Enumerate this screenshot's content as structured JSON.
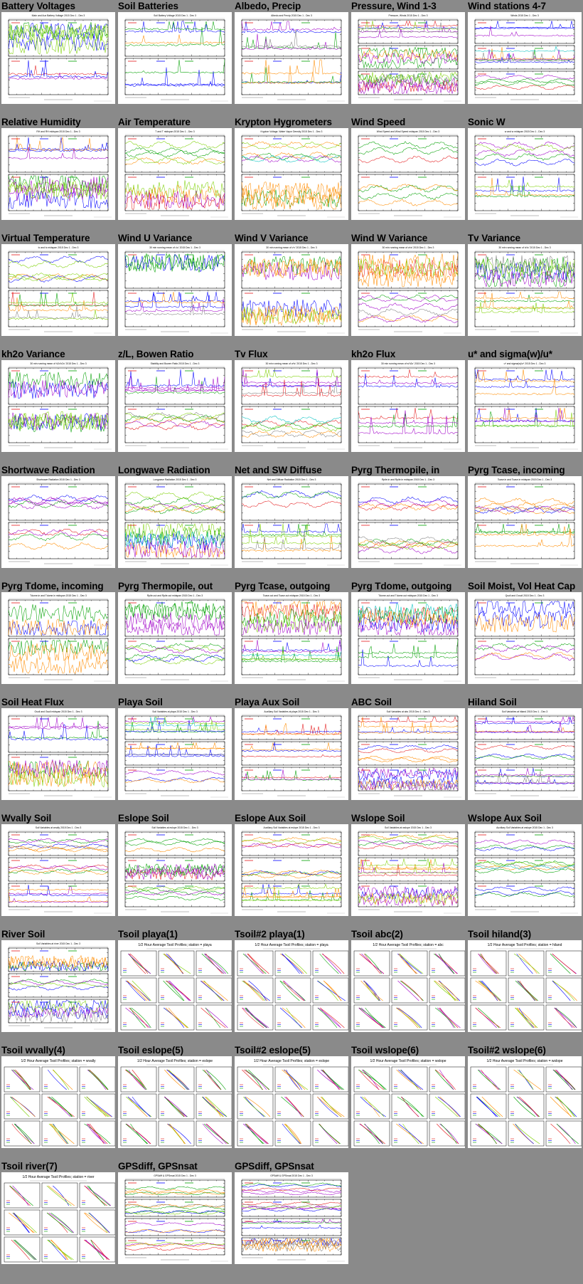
{
  "gallery": {
    "columns": 5,
    "panels": [
      {
        "title": "Battery Voltages",
        "kind": "ts2",
        "mini_title": "Main and Aux Battery Voltage 2015 Dec 1 - Dec 3"
      },
      {
        "title": "Soil Batteries",
        "kind": "ts2",
        "mini_title": "Soil Battery Voltage 2015 Dec 1 - Dec 3"
      },
      {
        "title": "Albedo, Precip",
        "kind": "ts2",
        "mini_title": "Albedo and Precip 2015 Dec 1 - Dec 3"
      },
      {
        "title": "Pressure, Wind 1-3",
        "kind": "ts3",
        "mini_title": "Pressure, Winds 2015 Dec 1 - Dec 3"
      },
      {
        "title": "Wind stations 4-7",
        "kind": "ts3",
        "mini_title": "Winds 2015 Dec 1 - Dec 3"
      },
      {
        "title": "Relative Humidity",
        "kind": "ts2",
        "mini_title": "RH and RH midspan 2015 Dec 1 - Dec 3"
      },
      {
        "title": "Air Temperature",
        "kind": "ts2",
        "mini_title": "T and T midspan 2015 Dec 1 - Dec 3"
      },
      {
        "title": "Krypton Hygrometers",
        "kind": "ts2",
        "mini_title": "Krypton Voltage, Water Vapor Density 2015 Dec 1 - Dec 3"
      },
      {
        "title": "Wind Speed",
        "kind": "ts2",
        "mini_title": "Wind Speed and Wind Speed midspan 2015 Dec 1 - Dec 3"
      },
      {
        "title": "Sonic W",
        "kind": "ts2",
        "mini_title": "w and w midspan 2015 Dec 1 - Dec 3"
      },
      {
        "title": "Virtual Temperature",
        "kind": "ts2",
        "mini_title": "tc and tc midspan 2015 Dec 1 - Dec 3"
      },
      {
        "title": "Wind U Variance",
        "kind": "ts2",
        "mini_title": "30 min running mean of u'u' 2015 Dec 1 - Dec 3"
      },
      {
        "title": "Wind V Variance",
        "kind": "ts2",
        "mini_title": "30 min running mean of v'v' 2015 Dec 1 - Dec 3"
      },
      {
        "title": "Wind W Variance",
        "kind": "ts2",
        "mini_title": "30 min running mean of w'w' 2015 Dec 1 - Dec 3"
      },
      {
        "title": "Tv Variance",
        "kind": "ts2",
        "mini_title": "30 min running mean of tc'tc' 2015 Dec 1 - Dec 3"
      },
      {
        "title": "kh2o Variance",
        "kind": "ts2",
        "mini_title": "30 min running mean of h2o'h2o' 2015 Dec 1 - Dec 3"
      },
      {
        "title": "z/L, Bowen Ratio",
        "kind": "ts2",
        "mini_title": "Stability and Bowen Ratio 2015 Dec 1 - Dec 3"
      },
      {
        "title": "Tv Flux",
        "kind": "ts2",
        "mini_title": "30 min running mean of w'tc' 2015 Dec 1 - Dec 3"
      },
      {
        "title": "kh2o Flux",
        "kind": "ts2",
        "mini_title": "30 min running mean of w'h2o' 2015 Dec 1 - Dec 3"
      },
      {
        "title": "u* and sigma(w)/u*",
        "kind": "ts2",
        "mini_title": "u* and sigma(w)/u* 2015 Dec 1 - Dec 3"
      },
      {
        "title": "Shortwave Radiation",
        "kind": "ts2",
        "mini_title": "Shortwave Radiation 2015 Dec 1 - Dec 3"
      },
      {
        "title": "Longwave Radiation",
        "kind": "ts2",
        "mini_title": "Longwave Radiation 2015 Dec 1 - Dec 3"
      },
      {
        "title": "Net and SW Diffuse",
        "kind": "ts2",
        "mini_title": "Net and Diffuse Radiation 2015 Dec 1 - Dec 3"
      },
      {
        "title": "Pyrg Thermopile, in",
        "kind": "ts2",
        "mini_title": "Rpile.in and Rpile.in midspan 2015 Dec 1 - Dec 3"
      },
      {
        "title": "Pyrg Tcase, incoming",
        "kind": "ts2",
        "mini_title": "Tcase.in and Tcase.in midspan 2015 Dec 1 - Dec 3"
      },
      {
        "title": "Pyrg Tdome, incoming",
        "kind": "ts2",
        "mini_title": "Tdome.in and Tdome.in midspan 2015 Dec 1 - Dec 3"
      },
      {
        "title": "Pyrg Thermopile, out",
        "kind": "ts2",
        "mini_title": "Rpile.out and Rpile.out midspan 2015 Dec 1 - Dec 3"
      },
      {
        "title": "Pyrg Tcase, outgoing",
        "kind": "ts2",
        "mini_title": "Tcase.out and Tcase.out midspan 2015 Dec 1 - Dec 3"
      },
      {
        "title": "Pyrg Tdome, outgoing",
        "kind": "ts2",
        "mini_title": "Tdome.out and Tdome.out midspan 2015 Dec 1 - Dec 3"
      },
      {
        "title": "Soil Moist, Vol Heat Cap",
        "kind": "ts2",
        "mini_title": "Qsoil and Cvsoil 2015 Dec 1 - Dec 3"
      },
      {
        "title": "Soil Heat Flux",
        "kind": "ts2",
        "mini_title": "Gsoil and Gsoil midspan 2015 Dec 1 - Dec 3"
      },
      {
        "title": "Playa Soil",
        "kind": "ts3",
        "mini_title": "Soil Variables at playa 2015 Dec 1 - Dec 3"
      },
      {
        "title": "Playa Aux Soil",
        "kind": "ts3",
        "mini_title": "Auxiliary Soil Variables at playa 2015 Dec 1 - Dec 3"
      },
      {
        "title": "ABC Soil",
        "kind": "ts3",
        "mini_title": "Soil Variables at abc 2015 Dec 1 - Dec 3"
      },
      {
        "title": "Hiland Soil",
        "kind": "ts3",
        "mini_title": "Soil Variables at hiland 2015 Dec 1 - Dec 3"
      },
      {
        "title": "Wvally Soil",
        "kind": "ts3",
        "mini_title": "Soil Variables at wvally 2015 Dec 1 - Dec 3"
      },
      {
        "title": "Eslope Soil",
        "kind": "ts3",
        "mini_title": "Soil Variables at eslope 2015 Dec 1 - Dec 3"
      },
      {
        "title": "Eslope Aux Soil",
        "kind": "ts3",
        "mini_title": "Auxiliary Soil Variables at eslope 2015 Dec 1 - Dec 3"
      },
      {
        "title": "Wslope Soil",
        "kind": "ts3",
        "mini_title": "Soil Variables at wslope 2015 Dec 1 - Dec 3"
      },
      {
        "title": "Wslope Aux Soil",
        "kind": "ts3",
        "mini_title": "Auxiliary Soil Variables at wslope 2015 Dec 1 - Dec 3"
      },
      {
        "title": "River Soil",
        "kind": "ts3",
        "mini_title": "Soil Variables at river 2015 Dec 1 - Dec 3"
      },
      {
        "title": "Tsoil playa(1)",
        "kind": "prof",
        "mini_title": "1/2 Hour Average Tsoil Profiles; station = playa"
      },
      {
        "title": "Tsoil#2 playa(1)",
        "kind": "prof",
        "mini_title": "1/2 Hour Average Tsoil Profiles; station = playa"
      },
      {
        "title": "Tsoil abc(2)",
        "kind": "prof",
        "mini_title": "1/2 Hour Average Tsoil Profiles; station = abc"
      },
      {
        "title": "Tsoil hiland(3)",
        "kind": "prof",
        "mini_title": "1/2 Hour Average Tsoil Profiles; station = hiland"
      },
      {
        "title": "Tsoil wvally(4)",
        "kind": "prof",
        "mini_title": "1/2 Hour Average Tsoil Profiles; station = wvally"
      },
      {
        "title": "Tsoil eslope(5)",
        "kind": "prof",
        "mini_title": "1/2 Hour Average Tsoil Profiles; station = eslope"
      },
      {
        "title": "Tsoil#2 eslope(5)",
        "kind": "prof",
        "mini_title": "1/2 Hour Average Tsoil Profiles; station = eslope"
      },
      {
        "title": "Tsoil wslope(6)",
        "kind": "prof",
        "mini_title": "1/2 Hour Average Tsoil Profiles; station = wslope"
      },
      {
        "title": "Tsoil#2 wslope(6)",
        "kind": "prof",
        "mini_title": "1/2 Hour Average Tsoil Profiles; station = wslope"
      },
      {
        "title": "Tsoil river(7)",
        "kind": "prof",
        "mini_title": "1/2 Hour Average Tsoil Profiles; station = river"
      },
      {
        "title": "GPSdiff, GPSnsat",
        "kind": "ts4",
        "mini_title": "GPSdiff & GPSnsat 2015 Dec 1 - Dec 3"
      },
      {
        "title": "GPSdiff, GPSnsat",
        "kind": "ts4",
        "mini_title": "GPSdiff & GPSnsat 2015 Dec 1 - Dec 3"
      }
    ]
  },
  "colors": {
    "page_bg": "#8a8a8a",
    "panel_bg": "#ffffff",
    "series": [
      "#e41a1c",
      "#0000ff",
      "#00a000",
      "#ff8c00",
      "#a000c8",
      "#7cd000",
      "#808080",
      "#00c0c0",
      "#ff66cc",
      "#000000"
    ]
  }
}
